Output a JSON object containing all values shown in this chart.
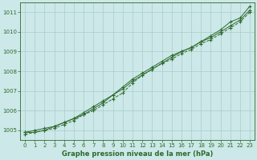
{
  "title": "Graphe pression niveau de la mer (hPa)",
  "background_color": "#cce8e8",
  "grid_color": "#aacccc",
  "line_color": "#2d6a2d",
  "x_values": [
    0,
    1,
    2,
    3,
    4,
    5,
    6,
    7,
    8,
    9,
    10,
    11,
    12,
    13,
    14,
    15,
    16,
    17,
    18,
    19,
    20,
    21,
    22,
    23
  ],
  "line1": [
    1004.9,
    1005.0,
    1005.1,
    1005.2,
    1005.4,
    1005.6,
    1005.8,
    1006.1,
    1006.4,
    1006.8,
    1007.1,
    1007.5,
    1007.8,
    1008.1,
    1008.4,
    1008.7,
    1009.0,
    1009.2,
    1009.5,
    1009.8,
    1010.1,
    1010.5,
    1010.7,
    1011.3
  ],
  "line2": [
    1004.9,
    1004.9,
    1005.0,
    1005.2,
    1005.4,
    1005.6,
    1005.9,
    1006.2,
    1006.5,
    1006.8,
    1007.2,
    1007.6,
    1007.9,
    1008.2,
    1008.5,
    1008.8,
    1009.0,
    1009.2,
    1009.5,
    1009.7,
    1010.0,
    1010.3,
    1010.6,
    1011.1
  ],
  "line3": [
    1004.8,
    1004.9,
    1005.0,
    1005.1,
    1005.3,
    1005.5,
    1005.8,
    1006.0,
    1006.3,
    1006.6,
    1006.9,
    1007.4,
    1007.8,
    1008.1,
    1008.4,
    1008.6,
    1008.9,
    1009.1,
    1009.4,
    1009.6,
    1009.9,
    1010.2,
    1010.5,
    1011.0
  ],
  "ylim": [
    1004.5,
    1011.5
  ],
  "yticks": [
    1005,
    1006,
    1007,
    1008,
    1009,
    1010,
    1011
  ],
  "xlim": [
    -0.5,
    23.5
  ],
  "xticks": [
    0,
    1,
    2,
    3,
    4,
    5,
    6,
    7,
    8,
    9,
    10,
    11,
    12,
    13,
    14,
    15,
    16,
    17,
    18,
    19,
    20,
    21,
    22,
    23
  ],
  "figsize": [
    3.2,
    2.0
  ],
  "dpi": 100
}
